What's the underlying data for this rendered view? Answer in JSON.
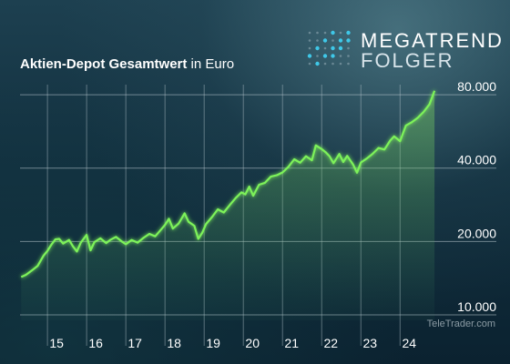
{
  "title_bold": "Aktien-Depot Gesamtwert",
  "title_light": "in Euro",
  "logo": {
    "line1": "MEGATREND",
    "line2": "FOLGER",
    "dot_color": "#3fc8e8"
  },
  "watermark": "TeleTrader.com",
  "colors": {
    "line": "#7df25a",
    "fill_top": "#6fcf5a",
    "grid": "#b9c8cf",
    "text": "#ffffff"
  },
  "chart_data": {
    "type": "line",
    "title": "Aktien-Depot Gesamtwert in Euro",
    "yscale": "log",
    "ylim": [
      9500,
      88000
    ],
    "xlim": [
      2014.3,
      2024.9
    ],
    "grid": true,
    "x_ticks": [
      "15",
      "16",
      "17",
      "18",
      "19",
      "20",
      "21",
      "22",
      "23",
      "24"
    ],
    "y_ticks": [
      "10.000",
      "20.000",
      "40.000",
      "80.000"
    ],
    "y_tick_values": [
      10000,
      20000,
      40000,
      80000
    ],
    "x_tick_values": [
      2015,
      2016,
      2017,
      2018,
      2019,
      2020,
      2021,
      2022,
      2023,
      2024
    ],
    "series": [
      {
        "x": [
          2014.33,
          2014.45,
          2014.6,
          2014.75,
          2014.9,
          2015.0,
          2015.1,
          2015.2,
          2015.3,
          2015.4,
          2015.55,
          2015.65,
          2015.75,
          2015.85,
          2016.0,
          2016.1,
          2016.2,
          2016.35,
          2016.5,
          2016.6,
          2016.75,
          2016.9,
          2017.0,
          2017.15,
          2017.3,
          2017.45,
          2017.6,
          2017.75,
          2017.9,
          2018.0,
          2018.1,
          2018.2,
          2018.35,
          2018.5,
          2018.6,
          2018.75,
          2018.85,
          2018.95,
          2019.05,
          2019.2,
          2019.35,
          2019.5,
          2019.65,
          2019.8,
          2019.95,
          2020.05,
          2020.15,
          2020.25,
          2020.4,
          2020.55,
          2020.7,
          2020.85,
          2021.0,
          2021.15,
          2021.3,
          2021.45,
          2021.6,
          2021.75,
          2021.85,
          2022.0,
          2022.1,
          2022.2,
          2022.3,
          2022.45,
          2022.55,
          2022.65,
          2022.8,
          2022.9,
          2023.0,
          2023.15,
          2023.3,
          2023.45,
          2023.6,
          2023.75,
          2023.85,
          2024.0,
          2024.15,
          2024.3,
          2024.45,
          2024.6,
          2024.75,
          2024.88
        ],
        "y": [
          14300,
          14600,
          15200,
          15900,
          17500,
          18300,
          19400,
          20400,
          20500,
          19600,
          20300,
          19100,
          18200,
          19800,
          21300,
          18400,
          19900,
          20600,
          19700,
          20300,
          20900,
          20000,
          19500,
          20300,
          19800,
          20700,
          21500,
          21000,
          22400,
          23400,
          24800,
          22600,
          23700,
          26100,
          24100,
          23200,
          20500,
          21700,
          23600,
          25200,
          27100,
          26300,
          28200,
          30100,
          31800,
          31200,
          33600,
          30800,
          34200,
          34800,
          36900,
          37400,
          38400,
          40500,
          43500,
          42100,
          44800,
          43100,
          49600,
          47900,
          46500,
          44800,
          41900,
          45700,
          42400,
          44900,
          41400,
          38300,
          42200,
          43800,
          45800,
          48400,
          47700,
          51900,
          54000,
          51600,
          59800,
          61700,
          64300,
          68000,
          73000,
          83000
        ]
      }
    ]
  }
}
